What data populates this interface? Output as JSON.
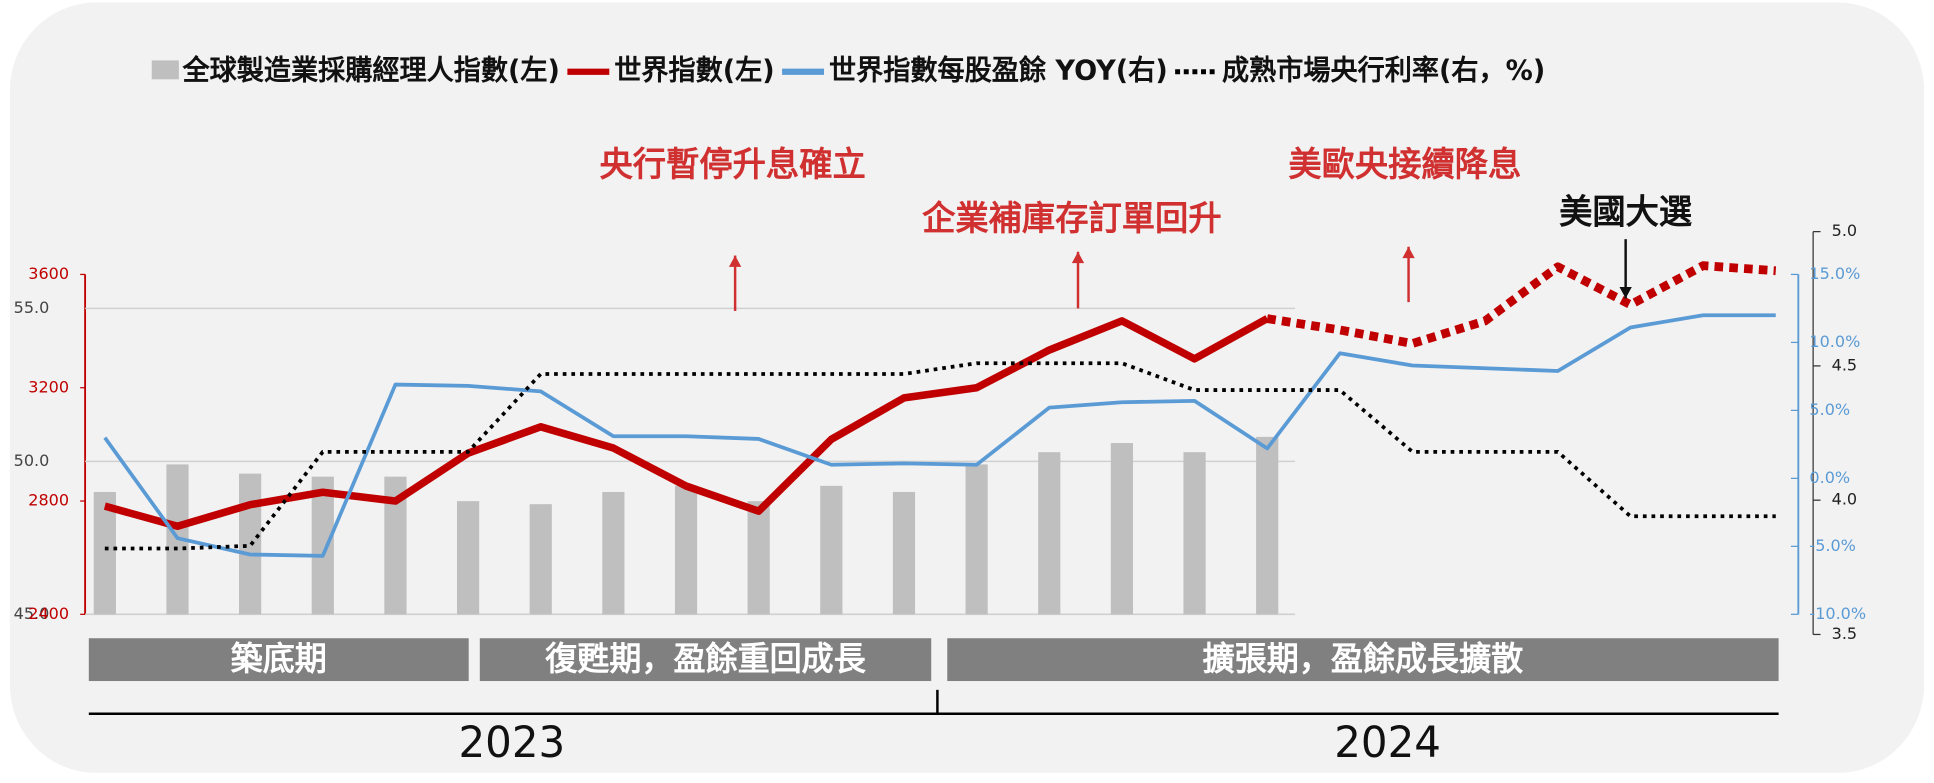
{
  "chart_data": {
    "type": "combo",
    "categories": [
      null,
      null,
      null,
      null,
      null,
      null,
      null,
      null,
      null,
      null,
      null,
      null,
      null,
      null,
      null,
      null,
      null,
      null,
      null,
      null,
      null,
      null,
      null,
      null
    ],
    "year_labels": [
      "2023",
      "2024"
    ],
    "phases": [
      "築底期",
      "復甦期，盈餘重回成長",
      "擴張期，盈餘成長擴散"
    ],
    "annotations": [
      {
        "text": "央行暫停升息確立",
        "color": "#d03030"
      },
      {
        "text": "企業補庫存訂單回升",
        "color": "#d03030"
      },
      {
        "text": "美歐央接續降息",
        "color": "#d03030"
      },
      {
        "text": "美國大選",
        "color": "#111111"
      }
    ],
    "series": [
      {
        "name": "全球製造業採購經理人指數(左)",
        "type": "bar",
        "axis": "y3",
        "color": "#bfbfbf",
        "values": [
          49.0,
          49.9,
          49.6,
          49.5,
          49.5,
          48.7,
          48.6,
          49.0,
          49.2,
          48.7,
          49.2,
          49.0,
          49.9,
          50.3,
          50.6,
          50.3,
          50.8,
          null,
          null,
          null,
          null,
          null,
          null,
          null
        ]
      },
      {
        "name": "世界指數(左)",
        "type": "line",
        "axis": "y",
        "color": "#c00000",
        "width": 6,
        "values": [
          2782,
          2711,
          2787,
          2831,
          2800,
          2969,
          3062,
          2987,
          2853,
          2764,
          3018,
          3164,
          3200,
          3333,
          3436,
          3302,
          3444,
          null,
          null,
          null,
          null,
          null,
          null,
          null
        ]
      },
      {
        "type": "line",
        "axis": "y",
        "color": "#c00000",
        "width": 7,
        "dotted": true,
        "values": [
          null,
          null,
          null,
          null,
          null,
          null,
          null,
          null,
          null,
          null,
          null,
          null,
          null,
          null,
          null,
          null,
          3444,
          3404,
          3356,
          3436,
          3627,
          3493,
          3631,
          3613
        ]
      },
      {
        "name": "世界指數每股盈餘 YOY(右)",
        "type": "line",
        "axis": "y2",
        "color": "#5b9bd5",
        "width": 3,
        "values": [
          3.0,
          -4.4,
          -5.6,
          -5.7,
          6.9,
          6.8,
          6.4,
          3.1,
          3.1,
          2.9,
          1.0,
          1.1,
          1.0,
          5.2,
          5.6,
          5.7,
          2.2,
          9.2,
          8.3,
          8.1,
          7.9,
          11.1,
          12.0,
          12.0
        ]
      },
      {
        "name": "成熟市場央行利率(右，%)",
        "type": "line",
        "axis": "y4",
        "color": "#000000",
        "width": 3,
        "dotted": true,
        "values": [
          3.82,
          3.82,
          3.83,
          4.18,
          4.18,
          4.18,
          4.47,
          4.47,
          4.47,
          4.47,
          4.47,
          4.47,
          4.51,
          4.51,
          4.51,
          4.41,
          4.41,
          4.41,
          4.18,
          4.18,
          4.18,
          3.94,
          3.94,
          3.94
        ]
      }
    ],
    "ylim": [
      2400,
      3600
    ],
    "yticks": [
      2400,
      2800,
      3200,
      3600
    ],
    "y3lim": [
      45,
      55
    ],
    "y3ticks": [
      {
        "value": 45,
        "label": "45.0"
      },
      {
        "value": 50,
        "label": "50.0"
      },
      {
        "value": 55,
        "label": "55.0"
      }
    ],
    "y2lim": [
      -10,
      15
    ],
    "y2ticks": [
      {
        "value": -10,
        "label": "-10.0%"
      },
      {
        "value": -5,
        "label": "-5.0%"
      },
      {
        "value": 0,
        "label": "0.0%"
      },
      {
        "value": 5,
        "label": "5.0%"
      },
      {
        "value": 10,
        "label": "10.0%"
      },
      {
        "value": 15,
        "label": "15.0%"
      }
    ],
    "y4lim": [
      3.5,
      5.0
    ],
    "y4ticks": [
      {
        "value": 3.5,
        "label": "3.5"
      },
      {
        "value": 4.0,
        "label": "4.0"
      },
      {
        "value": 4.5,
        "label": "4.5"
      },
      {
        "value": 5.0,
        "label": "5.0"
      }
    ],
    "grid": true
  }
}
